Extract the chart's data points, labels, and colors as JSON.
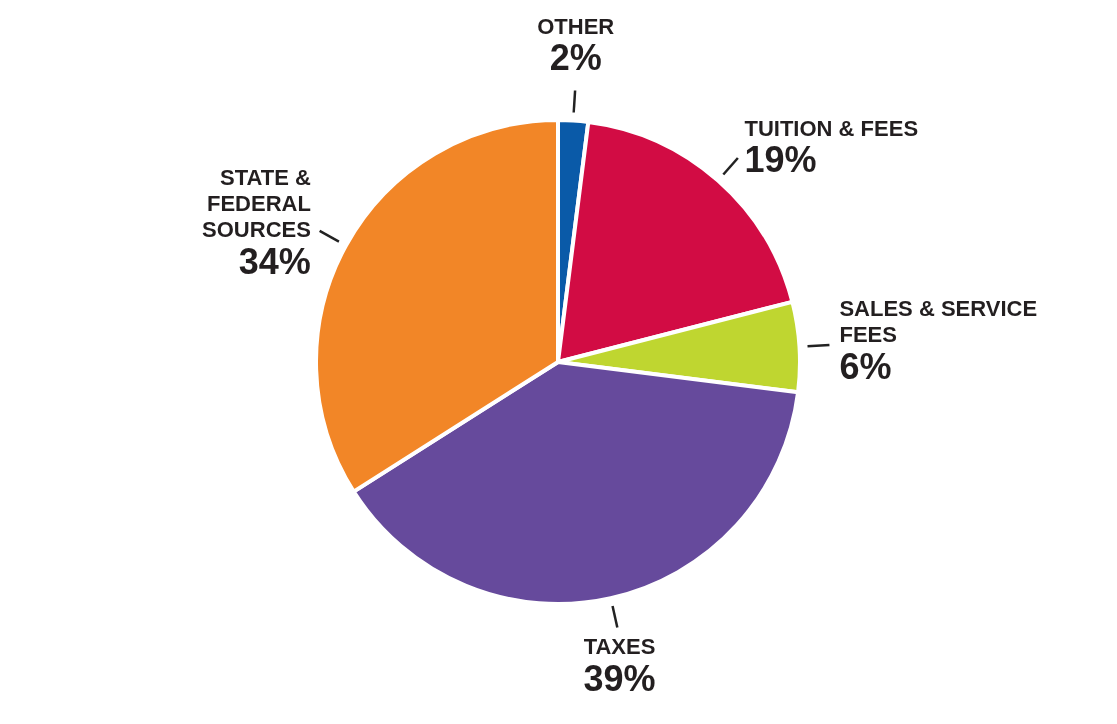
{
  "chart_data": {
    "type": "pie",
    "categories": [
      "OTHER",
      "TUITION & FEES",
      "SALES & SERVICE FEES",
      "TAXES",
      "STATE & FEDERAL SOURCES"
    ],
    "values": [
      2,
      19,
      6,
      39,
      34
    ],
    "colors": [
      "#0a5aa8",
      "#d20c44",
      "#bfd630",
      "#664a9c",
      "#f28627"
    ],
    "value_labels": [
      "2%",
      "19%",
      "6%",
      "39%",
      "34%"
    ],
    "legend": false
  }
}
